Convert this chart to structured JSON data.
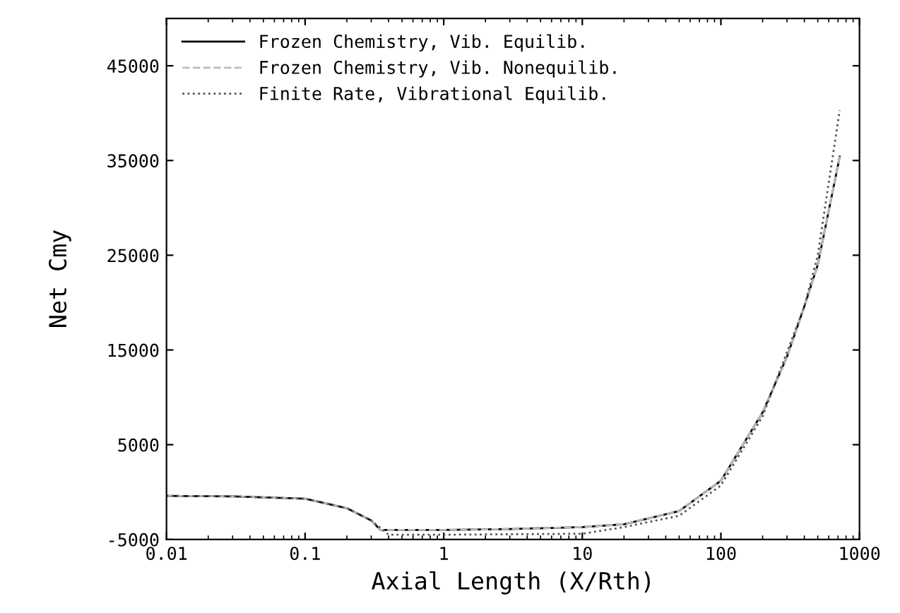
{
  "chart_data": {
    "type": "line",
    "xlabel": "Axial Length (X/Rth)",
    "ylabel": "Net Cmy",
    "log": "x",
    "xlim": [
      0.01,
      1000
    ],
    "xticks": [
      0.01,
      0.1,
      1,
      10,
      100,
      1000
    ],
    "ylim": [
      -5000,
      50000
    ],
    "yticks": [
      -5000,
      5000,
      15000,
      25000,
      35000,
      45000
    ],
    "grid": false,
    "legend": "top left",
    "marker": "none",
    "series": [
      {
        "name": "Frozen Chemistry, Vib. Equilib.",
        "color": "#000000",
        "line_style": "solid",
        "x": [
          0.01,
          0.03,
          0.1,
          0.2,
          0.3,
          0.35,
          0.5,
          1,
          3,
          10,
          20,
          50,
          100,
          200,
          300,
          400,
          500,
          720
        ],
        "values": [
          -400,
          -450,
          -700,
          -1700,
          -3000,
          -4000,
          -4000,
          -4000,
          -3900,
          -3700,
          -3400,
          -2000,
          1200,
          8400,
          14300,
          19600,
          24000,
          35400
        ]
      },
      {
        "name": "Frozen Chemistry, Vib. Nonequilib.",
        "color": "#bbbbbb",
        "line_style": "dashed",
        "x": [
          0.01,
          0.03,
          0.1,
          0.2,
          0.3,
          0.35,
          0.5,
          1,
          3,
          10,
          20,
          50,
          100,
          200,
          300,
          400,
          500,
          720
        ],
        "values": [
          -400,
          -450,
          -700,
          -1700,
          -3000,
          -4000,
          -4000,
          -4000,
          -3900,
          -3700,
          -3400,
          -2000,
          1200,
          8400,
          14300,
          19600,
          24000,
          35400
        ]
      },
      {
        "name": "Finite Rate, Vibrational Equilib.",
        "color": "#555555",
        "line_style": "dotted",
        "x": [
          0.01,
          0.03,
          0.1,
          0.2,
          0.3,
          0.4,
          1,
          10,
          20,
          50,
          100,
          200,
          400,
          500,
          720
        ],
        "values": [
          -400,
          -450,
          -700,
          -1700,
          -3000,
          -4500,
          -4500,
          -4400,
          -3700,
          -2500,
          700,
          8000,
          19600,
          25000,
          40300
        ]
      }
    ]
  }
}
